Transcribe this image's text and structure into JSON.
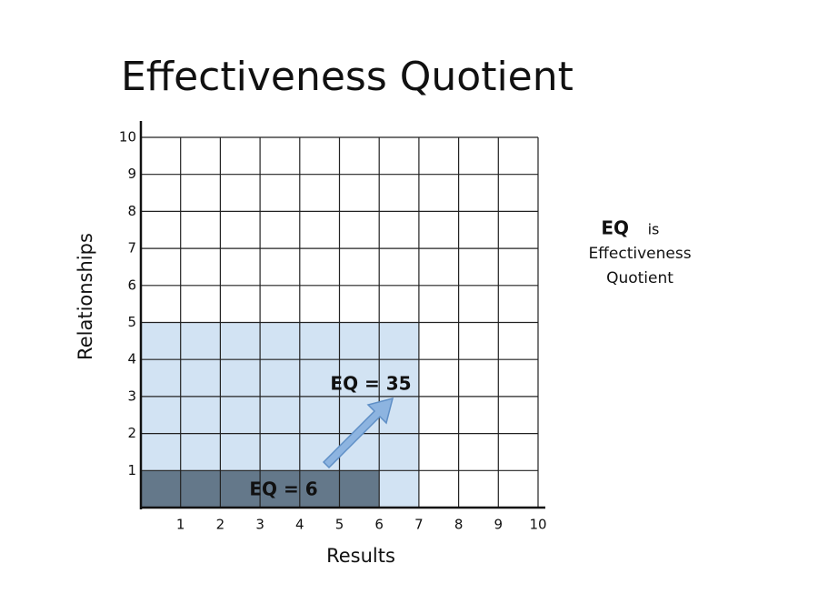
{
  "chart_data": {
    "type": "rect-area",
    "title": "Effectiveness Quotient",
    "x_label": "Results",
    "y_label": "Relationships",
    "xlim": [
      0,
      10
    ],
    "ylim": [
      0,
      10
    ],
    "xticks": [
      1,
      2,
      3,
      4,
      5,
      6,
      7,
      8,
      9,
      10
    ],
    "yticks": [
      1,
      2,
      3,
      4,
      5,
      6,
      7,
      8,
      9,
      10
    ],
    "grid": true,
    "label_color": "#e8923a",
    "regions": [
      {
        "label": "EQ = 35",
        "x": 7,
        "y": 5,
        "color": "#d2e3f3"
      },
      {
        "label": "EQ = 6",
        "x": 6,
        "y": 1,
        "color": "#64788a"
      }
    ]
  },
  "note": {
    "term": "EQ",
    "text": "is",
    "lines": [
      "Effectiveness",
      "Quotient"
    ]
  }
}
